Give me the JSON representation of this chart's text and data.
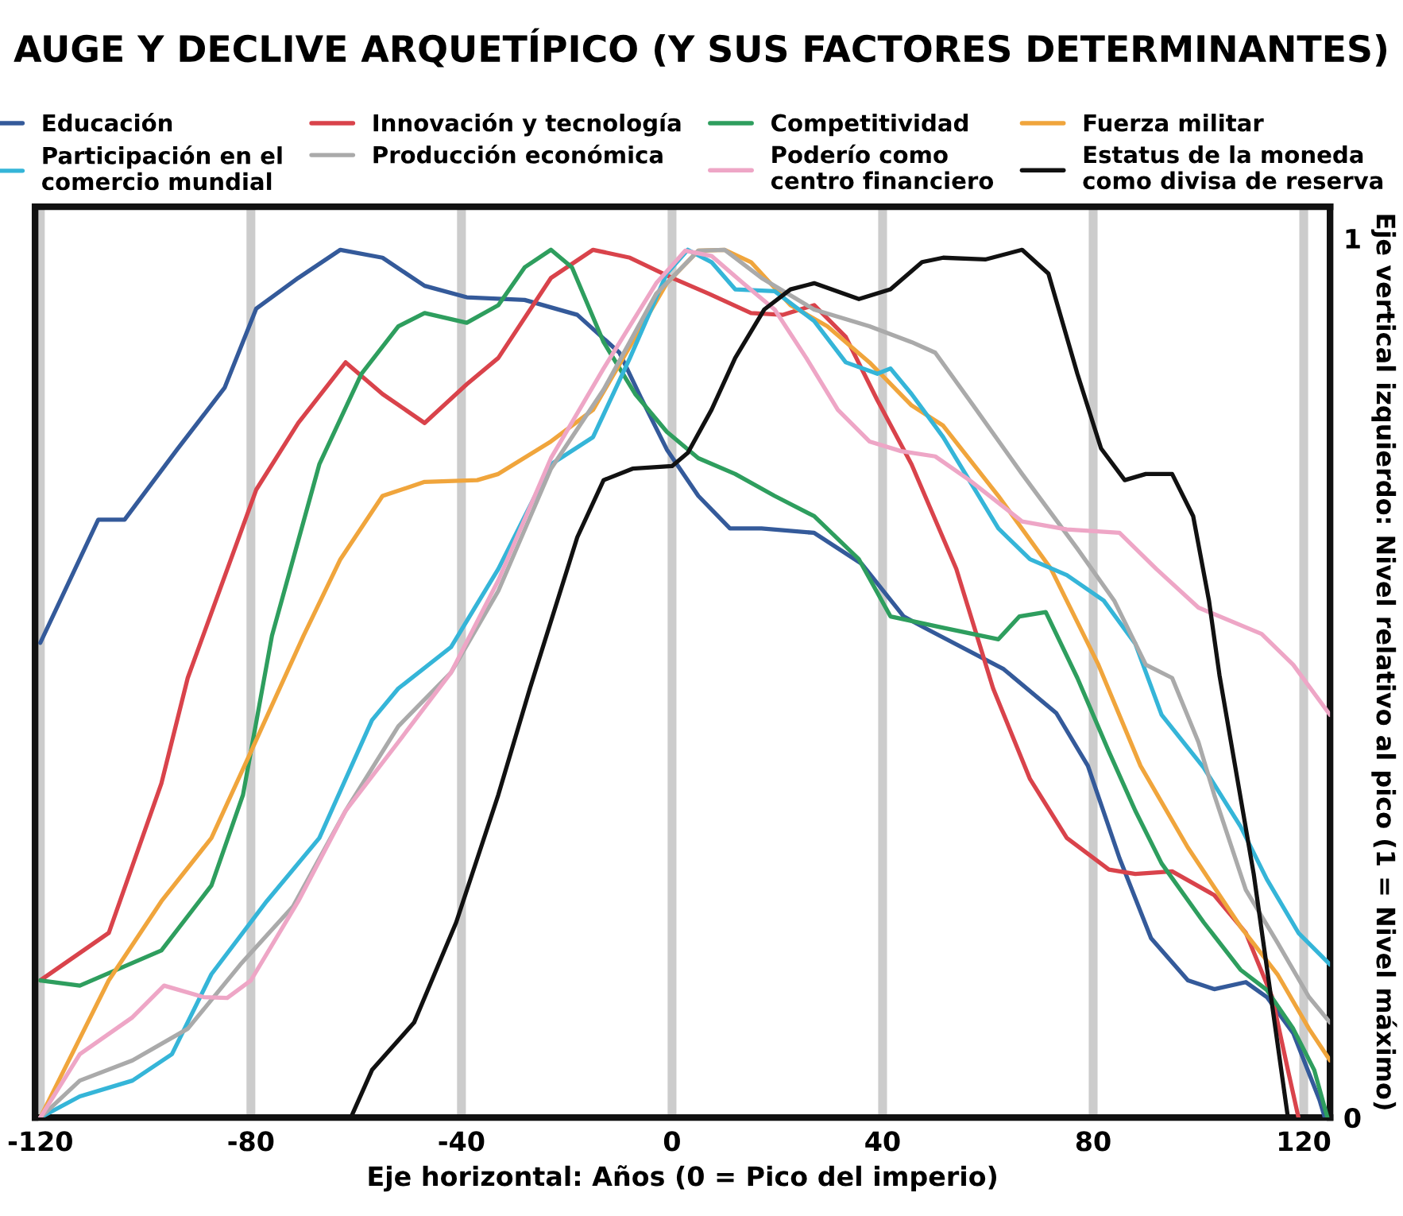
{
  "chart_data": {
    "type": "line",
    "title": "AUGE Y DECLIVE ARQUETÍPICO (Y SUS FACTORES DETERMINANTES)",
    "xlabel": "Eje horizontal: Años (0 = Pico del imperio)",
    "ylabel": "Eje vertical izquierdo: Nivel relativo al pico (1 = Nivel máximo)",
    "xlim": [
      -121,
      125
    ],
    "xticks": [
      -120,
      -80,
      -40,
      0,
      40,
      80,
      120
    ],
    "ylim": [
      0,
      1.036
    ],
    "yticks": [
      0,
      1
    ],
    "grid": "x",
    "legend": "top",
    "line_style": "solid",
    "marker": "none",
    "series": [
      {
        "name": "Educación",
        "color": "#345a9a",
        "x": [
          -120,
          -109,
          -104,
          -94,
          -85,
          -79,
          -71,
          -63,
          -55,
          -47,
          -39,
          -28,
          -18,
          -10,
          -6,
          -1,
          5,
          11,
          17,
          27,
          36,
          44,
          48,
          63,
          73,
          79,
          85,
          91,
          98,
          103,
          109,
          113,
          118,
          123,
          124
        ],
        "values": [
          0.54,
          0.68,
          0.68,
          0.76,
          0.83,
          0.92,
          0.955,
          0.987,
          0.978,
          0.946,
          0.933,
          0.93,
          0.913,
          0.87,
          0.82,
          0.76,
          0.707,
          0.67,
          0.67,
          0.665,
          0.63,
          0.57,
          0.557,
          0.51,
          0.46,
          0.4,
          0.295,
          0.204,
          0.156,
          0.146,
          0.154,
          0.137,
          0.096,
          0.02,
          0
        ]
      },
      {
        "name": "Innovación y tecnología",
        "color": "#d9434b",
        "x": [
          -120,
          -107,
          -97,
          -92,
          -79,
          -71,
          -62,
          -55,
          -47,
          -39,
          -33,
          -23,
          -15,
          -8,
          0,
          7,
          15,
          21,
          27,
          33,
          39,
          45.5,
          54,
          61,
          68,
          75,
          83,
          88,
          95,
          103,
          109,
          114,
          117,
          119
        ],
        "values": [
          0.156,
          0.21,
          0.38,
          0.5,
          0.714,
          0.79,
          0.859,
          0.823,
          0.79,
          0.834,
          0.864,
          0.955,
          0.987,
          0.978,
          0.955,
          0.937,
          0.915,
          0.913,
          0.924,
          0.888,
          0.816,
          0.743,
          0.624,
          0.488,
          0.385,
          0.318,
          0.282,
          0.277,
          0.28,
          0.253,
          0.21,
          0.137,
          0.054,
          0
        ]
      },
      {
        "name": "Competitividad",
        "color": "#2e9e5e",
        "x": [
          -120,
          -112.5,
          -97,
          -87.5,
          -81.5,
          -76,
          -67,
          -59,
          -52,
          -47,
          -39,
          -33,
          -28,
          -23,
          -19,
          -13,
          -7,
          -1,
          5,
          12,
          19.5,
          27,
          35.5,
          41.5,
          51.5,
          62,
          66,
          71,
          77,
          83,
          88,
          93,
          101,
          108,
          113,
          118,
          122,
          124.5
        ],
        "values": [
          0.156,
          0.15,
          0.19,
          0.264,
          0.367,
          0.548,
          0.743,
          0.846,
          0.9,
          0.915,
          0.904,
          0.924,
          0.967,
          0.987,
          0.967,
          0.882,
          0.823,
          0.78,
          0.75,
          0.732,
          0.707,
          0.684,
          0.635,
          0.57,
          0.557,
          0.544,
          0.57,
          0.575,
          0.5,
          0.416,
          0.349,
          0.289,
          0.222,
          0.168,
          0.145,
          0.101,
          0.054,
          0
        ]
      },
      {
        "name": "Fuerza militar",
        "color": "#f0a53c",
        "x": [
          -120,
          -107,
          -97,
          -87.5,
          -80,
          -70,
          -63,
          -55,
          -47,
          -37,
          -33,
          -23,
          -15,
          -8,
          -1,
          5,
          10,
          15,
          22.5,
          29.5,
          37.5,
          45.5,
          51.5,
          62,
          72,
          81,
          89,
          98,
          108,
          115,
          121,
          125
        ],
        "values": [
          0,
          0.156,
          0.246,
          0.318,
          0.416,
          0.548,
          0.635,
          0.707,
          0.723,
          0.725,
          0.732,
          0.769,
          0.805,
          0.877,
          0.949,
          0.986,
          0.987,
          0.973,
          0.924,
          0.9,
          0.859,
          0.81,
          0.787,
          0.707,
          0.624,
          0.515,
          0.4,
          0.307,
          0.217,
          0.163,
          0.101,
          0.065
        ]
      },
      {
        "name": "Participación en el\ncomercio mundial",
        "color": "#35b5d8",
        "x": [
          -120,
          -112.5,
          -102.5,
          -95,
          -87.5,
          -77,
          -67,
          -57,
          -52,
          -42,
          -33,
          -23,
          -15,
          -8,
          -1,
          3,
          7.5,
          12,
          19.5,
          27,
          33,
          39,
          41.5,
          45.5,
          51.5,
          62,
          68,
          75,
          82,
          88,
          93,
          101,
          108,
          113,
          119,
          125
        ],
        "values": [
          0,
          0.024,
          0.042,
          0.072,
          0.163,
          0.246,
          0.318,
          0.452,
          0.488,
          0.535,
          0.624,
          0.743,
          0.774,
          0.864,
          0.96,
          0.987,
          0.973,
          0.942,
          0.94,
          0.906,
          0.859,
          0.846,
          0.852,
          0.823,
          0.774,
          0.67,
          0.635,
          0.617,
          0.588,
          0.539,
          0.458,
          0.398,
          0.331,
          0.271,
          0.21,
          0.174
        ]
      },
      {
        "name": "Producción económica",
        "color": "#aaaaaa",
        "x": [
          -120,
          -112.5,
          -102.5,
          -92,
          -82,
          -72,
          -62,
          -52,
          -42,
          -33,
          -23,
          -13,
          -3,
          5,
          10,
          17,
          27,
          37.5,
          45.5,
          50,
          56.5,
          66.5,
          77,
          84,
          90,
          95,
          100,
          103,
          109,
          115,
          121,
          125
        ],
        "values": [
          0,
          0.042,
          0.065,
          0.101,
          0.174,
          0.24,
          0.349,
          0.445,
          0.506,
          0.599,
          0.738,
          0.828,
          0.937,
          0.986,
          0.987,
          0.955,
          0.919,
          0.9,
          0.882,
          0.87,
          0.816,
          0.732,
          0.647,
          0.588,
          0.515,
          0.5,
          0.427,
          0.367,
          0.259,
          0.199,
          0.137,
          0.108
        ]
      },
      {
        "name": "Poderío como\ncentro financiero",
        "color": "#eea6c6",
        "x": [
          -120,
          -112.5,
          -102.5,
          -96.5,
          -89,
          -84.5,
          -80,
          -71,
          -62,
          -52,
          -42,
          -33,
          -23,
          -13,
          -3,
          2.5,
          7.5,
          13.5,
          19.5,
          25.5,
          31.5,
          37.5,
          43.5,
          50,
          56.5,
          66.5,
          75,
          85,
          92,
          100,
          112,
          118,
          125
        ],
        "values": [
          0,
          0.072,
          0.114,
          0.15,
          0.137,
          0.136,
          0.156,
          0.246,
          0.349,
          0.427,
          0.506,
          0.611,
          0.75,
          0.852,
          0.949,
          0.986,
          0.98,
          0.949,
          0.919,
          0.864,
          0.805,
          0.769,
          0.758,
          0.752,
          0.725,
          0.678,
          0.669,
          0.665,
          0.624,
          0.58,
          0.55,
          0.515,
          0.458
        ]
      },
      {
        "name": "Estatus de la moneda\ncomo divisa de reserva",
        "color": "#111111",
        "x": [
          -61,
          -57,
          -49,
          -41,
          -33,
          -27,
          -18,
          -13,
          -7.5,
          0,
          3,
          7.5,
          12,
          17.5,
          22.5,
          27,
          35.5,
          41.5,
          47.5,
          51.5,
          59.5,
          66.5,
          71.5,
          77,
          81.5,
          86,
          90,
          95,
          99,
          102,
          104,
          110.5,
          117
        ],
        "values": [
          0,
          0.054,
          0.108,
          0.222,
          0.367,
          0.488,
          0.66,
          0.725,
          0.738,
          0.741,
          0.756,
          0.805,
          0.864,
          0.919,
          0.942,
          0.949,
          0.931,
          0.942,
          0.973,
          0.978,
          0.976,
          0.987,
          0.96,
          0.846,
          0.761,
          0.725,
          0.732,
          0.732,
          0.684,
          0.588,
          0.503,
          0.277,
          0
        ]
      }
    ]
  }
}
